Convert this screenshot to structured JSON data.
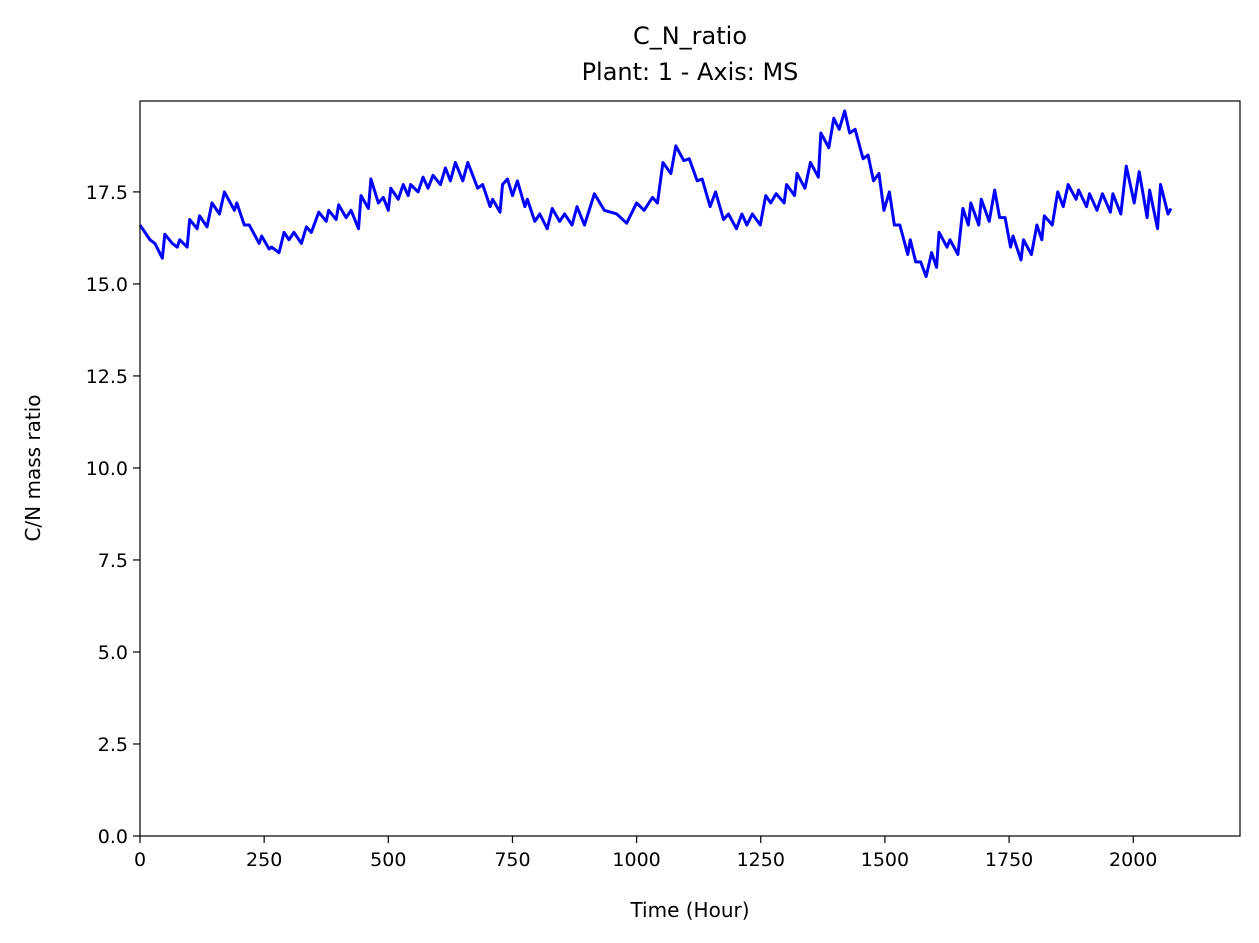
{
  "chart_data": {
    "type": "line",
    "title": "C_N_ratio",
    "subtitle": "Plant: 1 - Axis: MS",
    "x_label": "Time (Hour)",
    "y_label": "C/N mass ratio",
    "xlim": [
      0,
      2215
    ],
    "ylim": [
      0,
      19.97
    ],
    "xticks": [
      0,
      250,
      500,
      750,
      1000,
      1250,
      1500,
      1750,
      2000
    ],
    "yticks": [
      {
        "value": 0,
        "label": "0.0"
      },
      2.5,
      {
        "value": 5,
        "label": "5.0"
      },
      7.5,
      {
        "value": 10,
        "label": "10.0"
      },
      12.5,
      {
        "value": 15,
        "label": "15.0"
      },
      17.5
    ],
    "grid": false,
    "x": [
      0,
      10,
      20,
      30,
      45,
      50,
      65,
      75,
      80,
      95,
      100,
      115,
      120,
      135,
      145,
      160,
      170,
      190,
      195,
      210,
      220,
      240,
      245,
      260,
      265,
      280,
      290,
      300,
      310,
      325,
      335,
      345,
      360,
      375,
      380,
      395,
      400,
      415,
      425,
      440,
      445,
      460,
      465,
      480,
      490,
      500,
      505,
      520,
      530,
      540,
      545,
      560,
      570,
      580,
      590,
      605,
      615,
      625,
      635,
      650,
      660,
      680,
      690,
      705,
      710,
      725,
      730,
      740,
      750,
      760,
      775,
      780,
      795,
      805,
      820,
      830,
      845,
      855,
      870,
      880,
      895,
      915,
      935,
      960,
      980,
      1000,
      1015,
      1032,
      1042,
      1053,
      1069,
      1079,
      1095,
      1106,
      1122,
      1132,
      1148,
      1159,
      1175,
      1185,
      1201,
      1212,
      1222,
      1233,
      1249,
      1260,
      1270,
      1281,
      1297,
      1302,
      1318,
      1323,
      1339,
      1350,
      1366,
      1371,
      1387,
      1397,
      1408,
      1419,
      1429,
      1440,
      1456,
      1466,
      1477,
      1488,
      1498,
      1509,
      1519,
      1530,
      1546,
      1551,
      1562,
      1572,
      1583,
      1594,
      1604,
      1609,
      1625,
      1631,
      1647,
      1657,
      1668,
      1673,
      1689,
      1694,
      1710,
      1721,
      1731,
      1742,
      1753,
      1758,
      1774,
      1779,
      1795,
      1806,
      1816,
      1821,
      1837,
      1848,
      1859,
      1869,
      1885,
      1890,
      1906,
      1912,
      1927,
      1938,
      1954,
      1959,
      1975,
      1986,
      2002,
      2012,
      2028,
      2033,
      2049,
      2055,
      2070,
      2076
    ],
    "series": [
      {
        "color": "#0000ff",
        "values": [
          16.6,
          16.4,
          16.2,
          16.1,
          15.7,
          16.35,
          16.1,
          16.0,
          16.2,
          16.0,
          16.75,
          16.5,
          16.85,
          16.55,
          17.2,
          16.9,
          17.5,
          17.0,
          17.2,
          16.6,
          16.6,
          16.1,
          16.3,
          15.95,
          16.0,
          15.85,
          16.4,
          16.2,
          16.4,
          16.1,
          16.55,
          16.4,
          16.95,
          16.7,
          17.0,
          16.75,
          17.15,
          16.8,
          17.0,
          16.5,
          17.4,
          17.05,
          17.85,
          17.2,
          17.35,
          17.0,
          17.6,
          17.3,
          17.7,
          17.4,
          17.7,
          17.5,
          17.9,
          17.6,
          17.95,
          17.7,
          18.15,
          17.8,
          18.3,
          17.8,
          18.3,
          17.6,
          17.7,
          17.1,
          17.3,
          16.95,
          17.7,
          17.85,
          17.4,
          17.8,
          17.1,
          17.3,
          16.7,
          16.9,
          16.5,
          17.05,
          16.7,
          16.9,
          16.6,
          17.1,
          16.6,
          17.45,
          17.0,
          16.9,
          16.65,
          17.2,
          17.0,
          17.35,
          17.2,
          18.3,
          18.0,
          18.75,
          18.35,
          18.4,
          17.8,
          17.85,
          17.1,
          17.5,
          16.75,
          16.9,
          16.5,
          16.9,
          16.6,
          16.9,
          16.6,
          17.4,
          17.2,
          17.45,
          17.2,
          17.7,
          17.4,
          18.0,
          17.6,
          18.3,
          17.9,
          19.1,
          18.7,
          19.5,
          19.2,
          19.7,
          19.1,
          19.2,
          18.4,
          18.5,
          17.8,
          18.0,
          17.0,
          17.5,
          16.6,
          16.6,
          15.8,
          16.2,
          15.6,
          15.6,
          15.2,
          15.85,
          15.45,
          16.4,
          16.0,
          16.2,
          15.8,
          17.05,
          16.6,
          17.2,
          16.6,
          17.3,
          16.7,
          17.55,
          16.8,
          16.8,
          16.0,
          16.3,
          15.65,
          16.2,
          15.8,
          16.6,
          16.2,
          16.85,
          16.6,
          17.5,
          17.1,
          17.7,
          17.3,
          17.55,
          17.1,
          17.45,
          17.0,
          17.45,
          16.95,
          17.45,
          16.9,
          18.2,
          17.2,
          18.05,
          16.8,
          17.55,
          16.5,
          17.7,
          16.9,
          17.05
        ]
      }
    ]
  }
}
